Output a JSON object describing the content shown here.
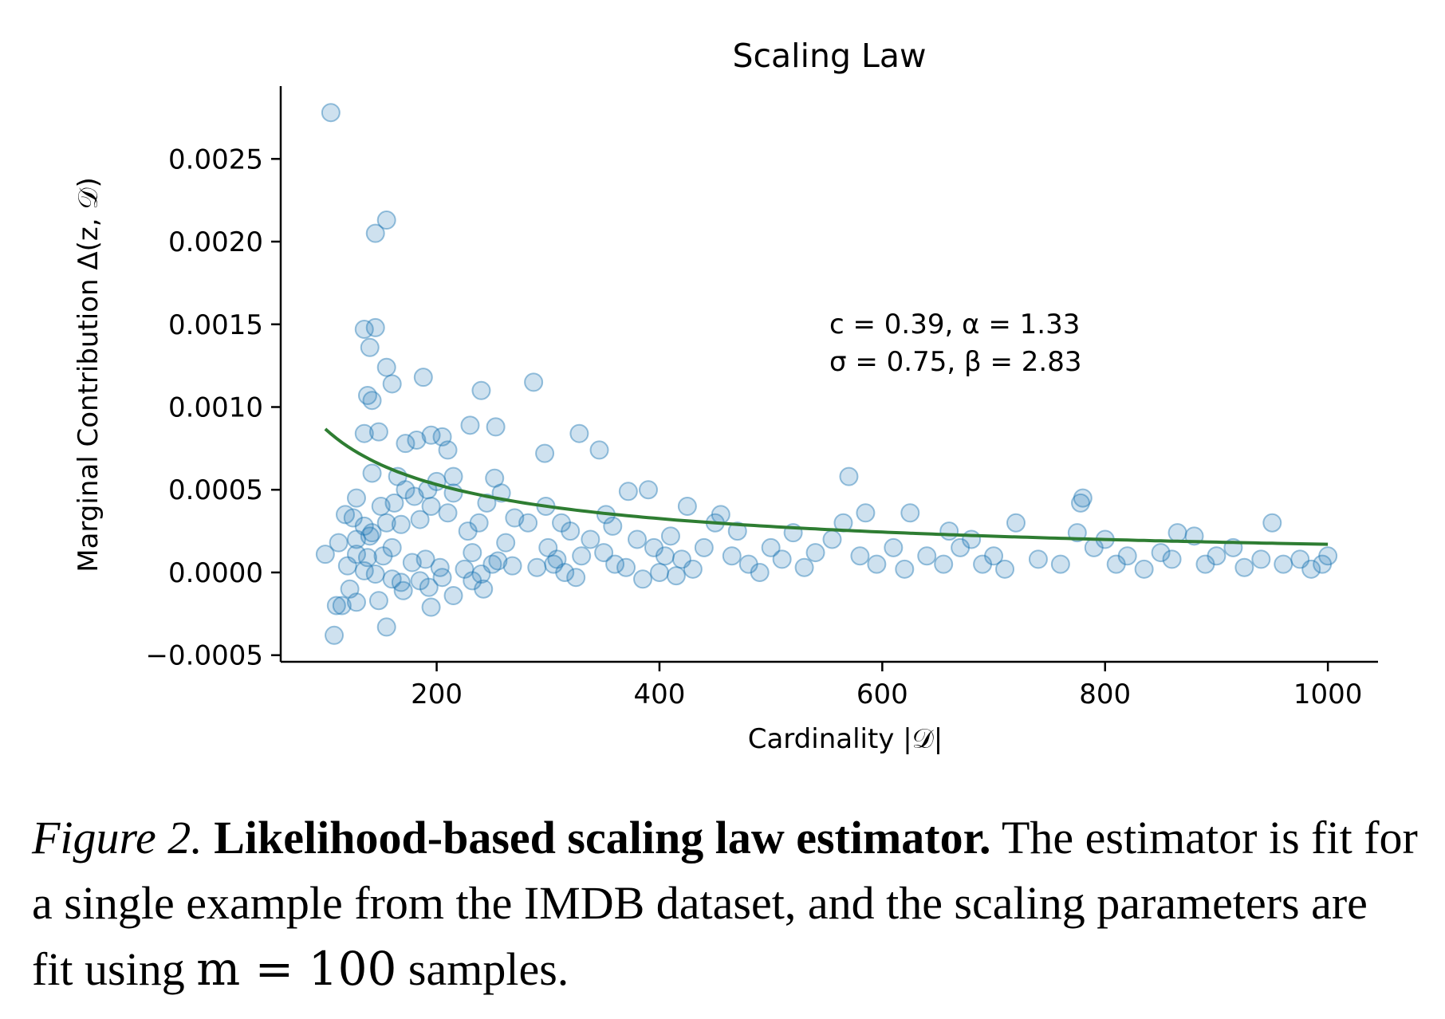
{
  "chart_data": {
    "type": "scatter",
    "title": "Scaling Law",
    "xlabel": "Cardinality |𝒟|",
    "ylabel": "Marginal Contribution Δ(z, 𝒟)",
    "xlim": [
      60,
      1045
    ],
    "ylim": [
      -0.00054,
      0.00294
    ],
    "xticks": [
      200,
      400,
      600,
      800,
      1000
    ],
    "xtick_labels": [
      "200",
      "400",
      "600",
      "800",
      "1000"
    ],
    "yticks": [
      -0.0005,
      0.0,
      0.0005,
      0.001,
      0.0015,
      0.002,
      0.0025
    ],
    "ytick_labels": [
      "−0.0005",
      "0.0000",
      "0.0005",
      "0.0010",
      "0.0015",
      "0.0020",
      "0.0025"
    ],
    "grid": false,
    "annotation": [
      "c = 0.39, α = 1.33",
      "σ = 0.75, β = 2.83"
    ],
    "colors": {
      "points": "#1f77b4",
      "fit_line": "#2e7d32"
    },
    "points": [
      [
        105,
        0.00278
      ],
      [
        145,
        0.00205
      ],
      [
        155,
        0.00213
      ],
      [
        135,
        0.00147
      ],
      [
        145,
        0.00148
      ],
      [
        140,
        0.00136
      ],
      [
        155,
        0.00124
      ],
      [
        160,
        0.00114
      ],
      [
        188,
        0.00118
      ],
      [
        138,
        0.00107
      ],
      [
        142,
        0.00104
      ],
      [
        135,
        0.00084
      ],
      [
        148,
        0.00085
      ],
      [
        172,
        0.00078
      ],
      [
        182,
        0.0008
      ],
      [
        195,
        0.00083
      ],
      [
        205,
        0.00082
      ],
      [
        210,
        0.00074
      ],
      [
        142,
        0.0006
      ],
      [
        165,
        0.00058
      ],
      [
        215,
        0.00058
      ],
      [
        172,
        0.0005
      ],
      [
        192,
        0.0005
      ],
      [
        215,
        0.00048
      ],
      [
        200,
        0.00055
      ],
      [
        128,
        0.00045
      ],
      [
        150,
        0.0004
      ],
      [
        162,
        0.00042
      ],
      [
        180,
        0.00046
      ],
      [
        195,
        0.0004
      ],
      [
        118,
        0.00035
      ],
      [
        125,
        0.00033
      ],
      [
        135,
        0.00028
      ],
      [
        142,
        0.00024
      ],
      [
        155,
        0.0003
      ],
      [
        168,
        0.00029
      ],
      [
        185,
        0.00032
      ],
      [
        210,
        0.00036
      ],
      [
        128,
        0.0002
      ],
      [
        140,
        0.00022
      ],
      [
        160,
        0.00015
      ],
      [
        112,
        0.00018
      ],
      [
        100,
        0.00011
      ],
      [
        128,
        0.00011
      ],
      [
        138,
        9e-05
      ],
      [
        152,
        0.0001
      ],
      [
        120,
        4e-05
      ],
      [
        135,
        1e-05
      ],
      [
        178,
        6e-05
      ],
      [
        190,
        8e-05
      ],
      [
        203,
        3e-05
      ],
      [
        145,
        -1e-05
      ],
      [
        160,
        -4e-05
      ],
      [
        168,
        -6e-05
      ],
      [
        185,
        -5e-05
      ],
      [
        205,
        -3e-05
      ],
      [
        122,
        -0.0001
      ],
      [
        170,
        -0.00011
      ],
      [
        193,
        -9e-05
      ],
      [
        110,
        -0.0002
      ],
      [
        115,
        -0.0002
      ],
      [
        128,
        -0.00018
      ],
      [
        148,
        -0.00017
      ],
      [
        195,
        -0.00021
      ],
      [
        215,
        -0.00014
      ],
      [
        155,
        -0.00033
      ],
      [
        108,
        -0.00038
      ],
      [
        230,
        0.00089
      ],
      [
        240,
        0.0011
      ],
      [
        253,
        0.00088
      ],
      [
        245,
        0.00042
      ],
      [
        252,
        0.00057
      ],
      [
        258,
        0.00048
      ],
      [
        238,
        0.0003
      ],
      [
        228,
        0.00025
      ],
      [
        262,
        0.00018
      ],
      [
        270,
        0.00033
      ],
      [
        282,
        0.0003
      ],
      [
        298,
        0.0004
      ],
      [
        232,
        0.00012
      ],
      [
        250,
        5e-05
      ],
      [
        240,
        -1e-05
      ],
      [
        255,
        7e-05
      ],
      [
        268,
        4e-05
      ],
      [
        225,
        2e-05
      ],
      [
        232,
        -5e-05
      ],
      [
        242,
        -0.0001
      ],
      [
        287,
        0.00115
      ],
      [
        297,
        0.00072
      ],
      [
        328,
        0.00084
      ],
      [
        346,
        0.00074
      ],
      [
        300,
        0.00015
      ],
      [
        305,
        5e-05
      ],
      [
        312,
        0.0003
      ],
      [
        320,
        0.00025
      ],
      [
        330,
        0.0001
      ],
      [
        290,
        3e-05
      ],
      [
        315,
        0.0
      ],
      [
        325,
        -3e-05
      ],
      [
        308,
        8e-05
      ],
      [
        338,
        0.0002
      ],
      [
        352,
        0.00035
      ],
      [
        358,
        0.00028
      ],
      [
        350,
        0.00012
      ],
      [
        360,
        5e-05
      ],
      [
        372,
        0.00049
      ],
      [
        390,
        0.0005
      ],
      [
        380,
        0.0002
      ],
      [
        395,
        0.00015
      ],
      [
        405,
        0.0001
      ],
      [
        410,
        0.00022
      ],
      [
        420,
        8e-05
      ],
      [
        370,
        3e-05
      ],
      [
        385,
        -4e-05
      ],
      [
        400,
        0.0
      ],
      [
        415,
        -2e-05
      ],
      [
        430,
        2e-05
      ],
      [
        425,
        0.0004
      ],
      [
        440,
        0.00015
      ],
      [
        450,
        0.0003
      ],
      [
        455,
        0.00035
      ],
      [
        465,
        0.0001
      ],
      [
        470,
        0.00025
      ],
      [
        480,
        5e-05
      ],
      [
        490,
        0.0
      ],
      [
        500,
        0.00015
      ],
      [
        510,
        8e-05
      ],
      [
        520,
        0.00024
      ],
      [
        530,
        3e-05
      ],
      [
        540,
        0.00012
      ],
      [
        555,
        0.0002
      ],
      [
        565,
        0.0003
      ],
      [
        570,
        0.00058
      ],
      [
        585,
        0.00036
      ],
      [
        580,
        0.0001
      ],
      [
        595,
        5e-05
      ],
      [
        610,
        0.00015
      ],
      [
        620,
        2e-05
      ],
      [
        625,
        0.00036
      ],
      [
        640,
        0.0001
      ],
      [
        655,
        5e-05
      ],
      [
        660,
        0.00025
      ],
      [
        670,
        0.00015
      ],
      [
        680,
        0.0002
      ],
      [
        690,
        5e-05
      ],
      [
        700,
        0.0001
      ],
      [
        710,
        2e-05
      ],
      [
        720,
        0.0003
      ],
      [
        740,
        8e-05
      ],
      [
        760,
        5e-05
      ],
      [
        775,
        0.00024
      ],
      [
        780,
        0.00045
      ],
      [
        778,
        0.00042
      ],
      [
        790,
        0.00015
      ],
      [
        800,
        0.0002
      ],
      [
        810,
        5e-05
      ],
      [
        820,
        0.0001
      ],
      [
        835,
        2e-05
      ],
      [
        850,
        0.00012
      ],
      [
        860,
        8e-05
      ],
      [
        865,
        0.00024
      ],
      [
        880,
        0.00022
      ],
      [
        890,
        5e-05
      ],
      [
        900,
        0.0001
      ],
      [
        915,
        0.00015
      ],
      [
        925,
        3e-05
      ],
      [
        940,
        8e-05
      ],
      [
        950,
        0.0003
      ],
      [
        960,
        5e-05
      ],
      [
        975,
        8e-05
      ],
      [
        985,
        2e-05
      ],
      [
        995,
        5e-05
      ],
      [
        1000,
        0.0001
      ]
    ],
    "fit_curve": {
      "formula": "y = 0.0225 * x^-0.707",
      "x_start": 100,
      "x_end": 1000
    }
  },
  "caption": {
    "figure_label": "Figure 2.",
    "bold_title": "Likelihood-based scaling law estimator.",
    "text_line1_rest": "The estimator",
    "text_line2": "is fit for a single example from the IMDB dataset, and the scaling",
    "text_line3_pre": "parameters are fit using",
    "math": "m = 100",
    "text_line3_post": "samples."
  }
}
